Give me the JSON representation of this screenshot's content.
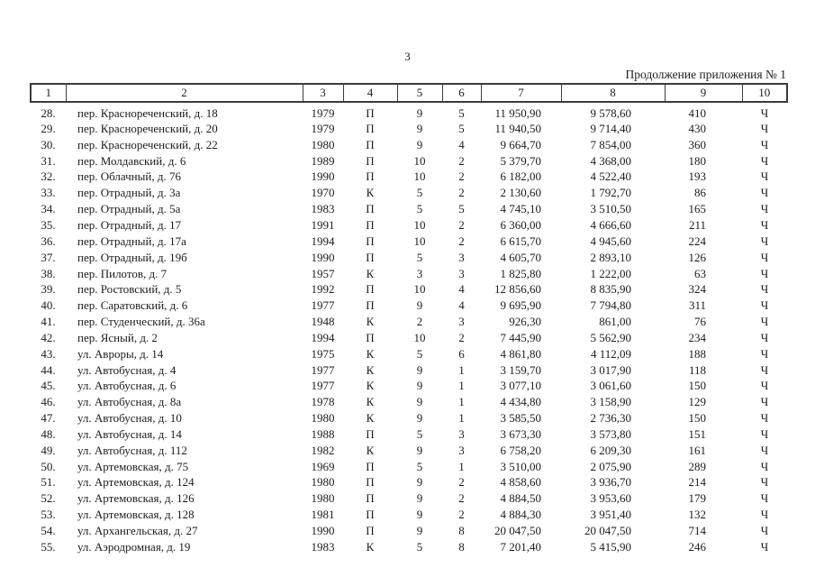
{
  "page": {
    "page_number": "3",
    "continuation_note": "Продолжение приложения № 1"
  },
  "table": {
    "column_numbers": [
      "1",
      "2",
      "3",
      "4",
      "5",
      "6",
      "7",
      "8",
      "9",
      "10"
    ],
    "rows": [
      [
        "28.",
        "пер. Краснореченский, д. 18",
        "1979",
        "П",
        "9",
        "5",
        "11 950,90",
        "9 578,60",
        "410",
        "Ч"
      ],
      [
        "29.",
        "пер. Краснореченский, д. 20",
        "1979",
        "П",
        "9",
        "5",
        "11 940,50",
        "9 714,40",
        "430",
        "Ч"
      ],
      [
        "30.",
        "пер. Краснореченский, д. 22",
        "1980",
        "П",
        "9",
        "4",
        "9 664,70",
        "7 854,00",
        "360",
        "Ч"
      ],
      [
        "31.",
        "пер. Молдавский, д. 6",
        "1989",
        "П",
        "10",
        "2",
        "5 379,70",
        "4 368,00",
        "180",
        "Ч"
      ],
      [
        "32.",
        "пер. Облачный, д. 76",
        "1990",
        "П",
        "10",
        "2",
        "6 182,00",
        "4 522,40",
        "193",
        "Ч"
      ],
      [
        "33.",
        "пер. Отрадный, д. 3а",
        "1970",
        "К",
        "5",
        "2",
        "2 130,60",
        "1 792,70",
        "86",
        "Ч"
      ],
      [
        "34.",
        "пер. Отрадный, д. 5а",
        "1983",
        "П",
        "5",
        "5",
        "4 745,10",
        "3 510,50",
        "165",
        "Ч"
      ],
      [
        "35.",
        "пер. Отрадный, д. 17",
        "1991",
        "П",
        "10",
        "2",
        "6 360,00",
        "4 666,60",
        "211",
        "Ч"
      ],
      [
        "36.",
        "пер. Отрадный, д. 17а",
        "1994",
        "П",
        "10",
        "2",
        "6 615,70",
        "4 945,60",
        "224",
        "Ч"
      ],
      [
        "37.",
        "пер. Отрадный, д. 19б",
        "1990",
        "П",
        "5",
        "3",
        "4 605,70",
        "2 893,10",
        "126",
        "Ч"
      ],
      [
        "38.",
        "пер. Пилотов, д. 7",
        "1957",
        "К",
        "3",
        "3",
        "1 825,80",
        "1 222,00",
        "63",
        "Ч"
      ],
      [
        "39.",
        "пер. Ростовский, д. 5",
        "1992",
        "П",
        "10",
        "4",
        "12 856,60",
        "8 835,90",
        "324",
        "Ч"
      ],
      [
        "40.",
        "пер. Саратовский, д. 6",
        "1977",
        "П",
        "9",
        "4",
        "9 695,90",
        "7 794,80",
        "311",
        "Ч"
      ],
      [
        "41.",
        "пер. Студенческий, д. 36а",
        "1948",
        "К",
        "2",
        "3",
        "926,30",
        "861,00",
        "76",
        "Ч"
      ],
      [
        "42.",
        "пер. Ясный, д. 2",
        "1994",
        "П",
        "10",
        "2",
        "7 445,90",
        "5 562,90",
        "234",
        "Ч"
      ],
      [
        "43.",
        "ул. Авроры, д. 14",
        "1975",
        "К",
        "5",
        "6",
        "4 861,80",
        "4 112,09",
        "188",
        "Ч"
      ],
      [
        "44.",
        "ул. Автобусная, д. 4",
        "1977",
        "К",
        "9",
        "1",
        "3 159,70",
        "3 017,90",
        "118",
        "Ч"
      ],
      [
        "45.",
        "ул. Автобусная, д. 6",
        "1977",
        "К",
        "9",
        "1",
        "3 077,10",
        "3 061,60",
        "150",
        "Ч"
      ],
      [
        "46.",
        "ул. Автобусная, д. 8а",
        "1978",
        "К",
        "9",
        "1",
        "4 434,80",
        "3 158,90",
        "129",
        "Ч"
      ],
      [
        "47.",
        "ул. Автобусная, д. 10",
        "1980",
        "К",
        "9",
        "1",
        "3 585,50",
        "2 736,30",
        "150",
        "Ч"
      ],
      [
        "48.",
        "ул. Автобусная, д. 14",
        "1988",
        "П",
        "5",
        "3",
        "3 673,30",
        "3 573,80",
        "151",
        "Ч"
      ],
      [
        "49.",
        "ул. Автобусная, д. 112",
        "1982",
        "К",
        "9",
        "3",
        "6 758,20",
        "6 209,30",
        "161",
        "Ч"
      ],
      [
        "50.",
        "ул. Артемовская, д. 75",
        "1969",
        "П",
        "5",
        "1",
        "3 510,00",
        "2 075,90",
        "289",
        "Ч"
      ],
      [
        "51.",
        "ул. Артемовская, д. 124",
        "1980",
        "П",
        "9",
        "2",
        "4 858,60",
        "3 936,70",
        "214",
        "Ч"
      ],
      [
        "52.",
        "ул. Артемовская, д. 126",
        "1980",
        "П",
        "9",
        "2",
        "4 884,50",
        "3 953,60",
        "179",
        "Ч"
      ],
      [
        "53.",
        "ул. Артемовская, д. 128",
        "1981",
        "П",
        "9",
        "2",
        "4 884,30",
        "3 951,40",
        "132",
        "Ч"
      ],
      [
        "54.",
        "ул. Архангельская, д. 27",
        "1990",
        "П",
        "9",
        "8",
        "20 047,50",
        "20 047,50",
        "714",
        "Ч"
      ],
      [
        "55.",
        "ул. Аэродромная, д. 19",
        "1983",
        "К",
        "5",
        "8",
        "7 201,40",
        "5 415,90",
        "246",
        "Ч"
      ]
    ]
  }
}
